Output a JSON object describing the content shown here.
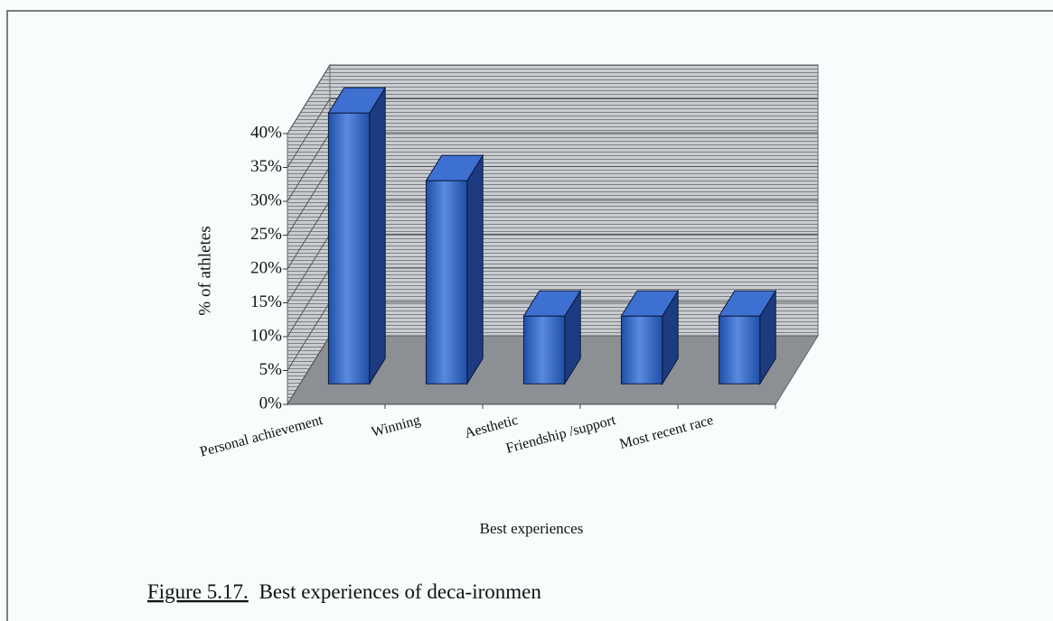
{
  "chart_data": {
    "type": "bar3d",
    "categories": [
      "Personal achievement",
      "Winning",
      "Aesthetic",
      "Friendship /support",
      "Most recent race"
    ],
    "values": [
      40,
      30,
      10,
      10,
      10
    ],
    "color": "#2f62c4",
    "ylim": [
      0,
      40
    ],
    "yticks": [
      {
        "value": 0,
        "label": "0%"
      },
      {
        "value": 5,
        "label": "5%"
      },
      {
        "value": 10,
        "label": "10%"
      },
      {
        "value": 15,
        "label": "15%"
      },
      {
        "value": 20,
        "label": "20%"
      },
      {
        "value": 25,
        "label": "25%"
      },
      {
        "value": 30,
        "label": "30%"
      },
      {
        "value": 35,
        "label": "35%"
      },
      {
        "value": 40,
        "label": "40%"
      }
    ],
    "grid": true,
    "ylabel": "% of athletes",
    "xlabel": "Best experiences",
    "caption": {
      "label": "Figure 5.17.",
      "text": "Best experiences of deca-ironmen"
    }
  }
}
